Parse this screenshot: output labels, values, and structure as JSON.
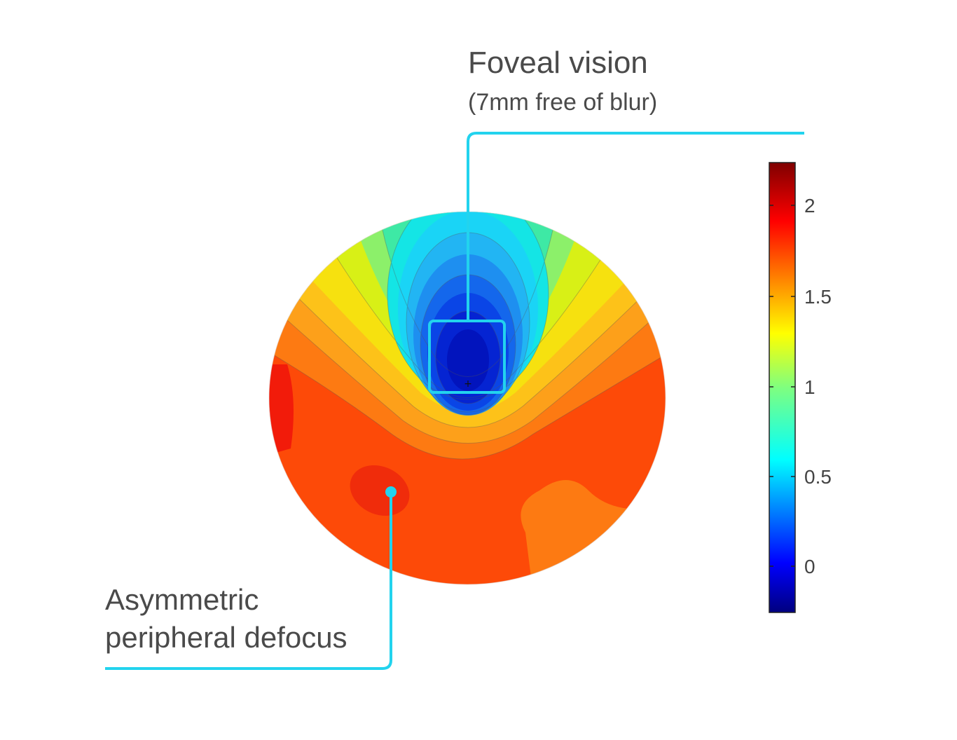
{
  "callouts": {
    "foveal": {
      "title": "Foveal vision",
      "subtitle": "(7mm free of blur)"
    },
    "peripheral": {
      "line1": "Asymmetric",
      "line2": "peripheral defocus"
    }
  },
  "colorbar": {
    "ticks": [
      "2",
      "1.5",
      "1",
      "0.5",
      "0"
    ],
    "colormap": "jet"
  },
  "colors": {
    "callout_line": "#22d3ee",
    "text": "#4a4a4a"
  }
}
